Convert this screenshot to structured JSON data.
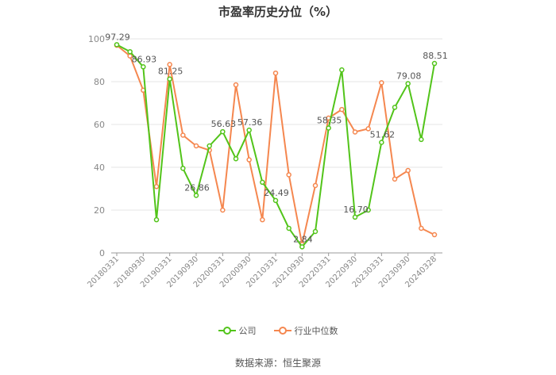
{
  "chart_data": {
    "type": "line",
    "title": "市盈率历史分位（%）",
    "xlabel": "",
    "ylabel": "",
    "ylim": [
      0,
      100
    ],
    "yticks": [
      0,
      20,
      40,
      60,
      80,
      100
    ],
    "x": [
      "20180331",
      "20180630",
      "20180930",
      "20181231",
      "20190331",
      "20190630",
      "20190930",
      "20191231",
      "20200331",
      "20200630",
      "20200930",
      "20201231",
      "20210331",
      "20210630",
      "20210930",
      "20211231",
      "20220331",
      "20220630",
      "20220930",
      "20221231",
      "20230331",
      "20230630",
      "20230930",
      "20231231",
      "20240328"
    ],
    "xtick_labels": [
      "20180331",
      "20180930",
      "20190331",
      "20190930",
      "20200331",
      "20200930",
      "20210331",
      "20210930",
      "20220331",
      "20220930",
      "20230331",
      "20230930",
      "20240328"
    ],
    "grid": true,
    "legend_position": "bottom",
    "series": [
      {
        "name": "公司",
        "color": "#52c41a",
        "values": [
          97.29,
          94,
          86.93,
          15.5,
          81.25,
          39.5,
          26.86,
          50,
          56.63,
          44,
          57.36,
          33,
          24.49,
          11.5,
          2.84,
          10,
          58.35,
          85.5,
          16.7,
          20,
          51.62,
          68,
          79.08,
          53,
          88.51
        ],
        "labels": [
          "97.29",
          "",
          "86.93",
          "",
          "81.25",
          "",
          "26.86",
          "",
          "56.63",
          "",
          "57.36",
          "",
          "24.49",
          "",
          "2.84",
          "",
          "58.35",
          "",
          "16.70",
          "",
          "51.62",
          "",
          "79.08",
          "",
          "88.51"
        ]
      },
      {
        "name": "行业中位数",
        "color": "#f5874f",
        "values": [
          97,
          92,
          76,
          31,
          88,
          55,
          50,
          48,
          20,
          78.5,
          43.5,
          15.5,
          84,
          36.5,
          4,
          31.5,
          63,
          67,
          56.5,
          58,
          79.5,
          34.5,
          38.5,
          11.5,
          8.5
        ]
      }
    ]
  },
  "source": "数据来源：恒生聚源"
}
